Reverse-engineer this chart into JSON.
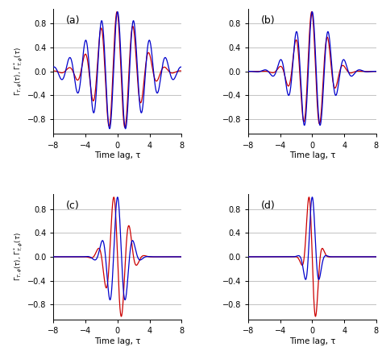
{
  "xlim": [
    -8,
    8
  ],
  "ylim": [
    -1.05,
    1.05
  ],
  "yticks": [
    -0.8,
    -0.4,
    0,
    0.4,
    0.8
  ],
  "xticks": [
    -8,
    -4,
    0,
    4,
    8
  ],
  "xlabel": "Time lag, τ",
  "panels": [
    "(a)",
    "(b)",
    "(c)",
    "(d)"
  ],
  "blue_color": "#0000cc",
  "red_color": "#cc0000",
  "grid_color": "#aaaaaa",
  "background_color": "#ffffff",
  "panel_params": [
    {
      "label": "(a)",
      "freq": 0.5,
      "sigma_blue": 3.5,
      "sigma_red": 3.5,
      "phase_blue": 0.0,
      "phase_red": 0.22,
      "red_extra_decay": 0.035
    },
    {
      "label": "(b)",
      "freq": 0.5,
      "sigma_blue": 2.2,
      "sigma_red": 2.2,
      "phase_blue": 0.0,
      "phase_red": 0.22,
      "red_extra_decay": 0.05
    },
    {
      "label": "(c)",
      "freq": 0.5,
      "sigma_blue": 1.2,
      "sigma_red": 1.2,
      "phase_blue": 0.0,
      "phase_red": 1.5708,
      "red_extra_decay": 0.0
    },
    {
      "label": "(d)",
      "freq": 0.5,
      "sigma_blue": 0.65,
      "sigma_red": 0.65,
      "phase_blue": 0.0,
      "phase_red": 1.5708,
      "red_extra_decay": 0.0
    }
  ]
}
